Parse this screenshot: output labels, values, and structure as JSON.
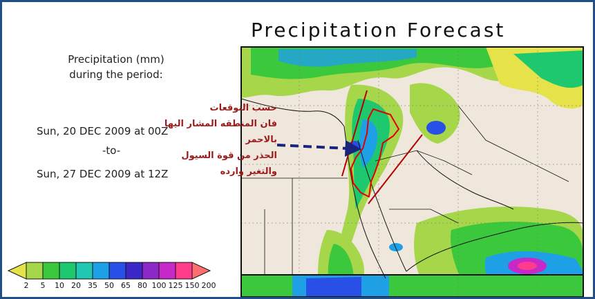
{
  "title": "Precipitation Forecast",
  "legend": {
    "unit_line1": "Precipitation (mm)",
    "unit_line2": "during the period:"
  },
  "period": {
    "start": "Sun, 20 DEC 2009 at 00Z",
    "separator": "-to-",
    "end": "Sun, 27 DEC 2009 at 12Z"
  },
  "colorbar": {
    "labels": [
      "2",
      "5",
      "10",
      "20",
      "35",
      "50",
      "65",
      "80",
      "100",
      "125",
      "150",
      "200"
    ],
    "colors": [
      "#e6e24a",
      "#a6d64a",
      "#3cc83c",
      "#1ec86e",
      "#20c8b4",
      "#1ea0e6",
      "#2850e6",
      "#3c28c8",
      "#8c28c8",
      "#c828c8",
      "#ff3c8c",
      "#ff6e6e"
    ]
  },
  "annotation": {
    "lines": [
      "حسب التوقعات",
      "فان المنطقه المشار اليها",
      "بالاحمر",
      "الحذر من قوة السيول",
      "والتغير وارده"
    ],
    "text_color": "#9b1c1c",
    "arrow_color": "#1a237e",
    "outline_color": "#e00000"
  },
  "map_colors": {
    "land": "#efe6dc",
    "border": "#111111"
  }
}
